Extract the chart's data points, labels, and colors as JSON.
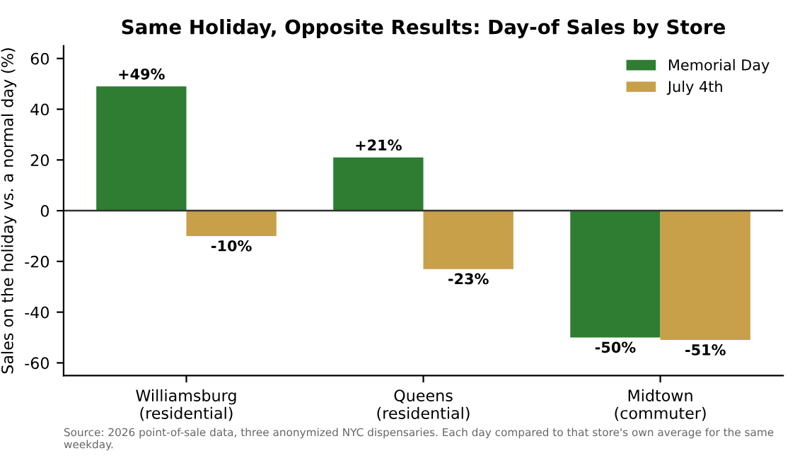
{
  "chart_data": {
    "type": "bar",
    "title": "Same Holiday, Opposite Results: Day-of Sales by Store",
    "ylabel": "Sales on the holiday vs. a normal day (%)",
    "categories": [
      "Williamsburg\n(residential)",
      "Queens\n(residential)",
      "Midtown\n(commuter)"
    ],
    "series": [
      {
        "name": "Memorial Day",
        "color": "#2e7d32",
        "values": [
          49,
          21,
          -50
        ],
        "value_labels": [
          "+49%",
          "+21%",
          "-50%"
        ]
      },
      {
        "name": "July 4th",
        "color": "#c9a04a",
        "values": [
          -10,
          -23,
          -51
        ],
        "value_labels": [
          "-10%",
          "-23%",
          "-51%"
        ]
      }
    ],
    "ylim": [
      -65,
      65
    ],
    "yticks": [
      -60,
      -40,
      -20,
      0,
      20,
      40,
      60
    ],
    "ref_lines": [
      {
        "axis": "y",
        "value": 0,
        "color": "#333333"
      }
    ],
    "grid": false,
    "legend": "top right",
    "annotations": [
      "Source: 2026 point-of-sale data, three anonymized NYC dispensaries. Each day compared to that store's own average for the same weekday."
    ]
  }
}
